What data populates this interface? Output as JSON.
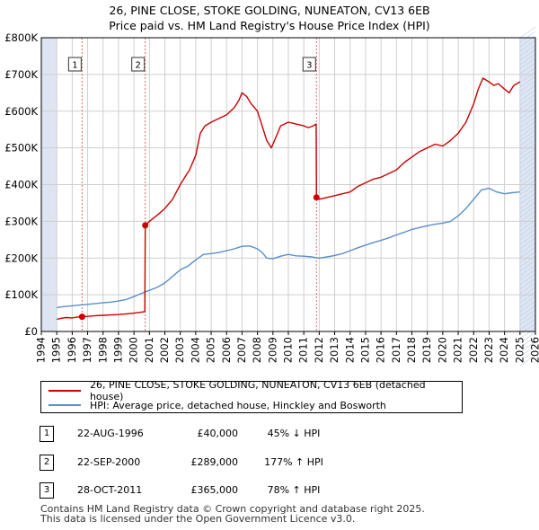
{
  "title_line1": "26, PINE CLOSE, STOKE GOLDING, NUNEATON, CV13 6EB",
  "title_line2": "Price paid vs. HM Land Registry's House Price Index (HPI)",
  "legend": {
    "property_label": "26, PINE CLOSE, STOKE GOLDING, NUNEATON, CV13 6EB (detached house)",
    "hpi_label": "HPI: Average price, detached house, Hinckley and Bosworth"
  },
  "transactions": [
    {
      "num": "1",
      "date": "22-AUG-1996",
      "price": "£40,000",
      "hpi": "45% ↓ HPI"
    },
    {
      "num": "2",
      "date": "22-SEP-2000",
      "price": "£289,000",
      "hpi": "177% ↑ HPI"
    },
    {
      "num": "3",
      "date": "28-OCT-2011",
      "price": "£365,000",
      "hpi": "78% ↑ HPI"
    }
  ],
  "footer": {
    "line1": "Contains HM Land Registry data © Crown copyright and database right 2025.",
    "line2": "This data is licensed under the Open Government Licence v3.0."
  },
  "colors": {
    "property": "#cc0000",
    "hpi": "#5b8ec9",
    "shade": "#dde5f3",
    "grid": "#cfcfcf",
    "marker_line": "#e06666"
  },
  "chart_data": {
    "type": "line",
    "title": "26, PINE CLOSE, STOKE GOLDING, NUNEATON, CV13 6EB — Price paid vs. HM Land Registry's House Price Index (HPI)",
    "xlabel": "",
    "ylabel": "",
    "xlim": [
      1994,
      2026
    ],
    "ylim": [
      0,
      800000
    ],
    "x_ticks": [
      1994,
      1995,
      1996,
      1997,
      1998,
      1999,
      2000,
      2001,
      2002,
      2003,
      2004,
      2005,
      2006,
      2007,
      2008,
      2009,
      2010,
      2011,
      2012,
      2013,
      2014,
      2015,
      2016,
      2017,
      2018,
      2019,
      2020,
      2021,
      2022,
      2023,
      2024,
      2025,
      2026
    ],
    "y_ticks": [
      {
        "value": 0,
        "label": "£0"
      },
      {
        "value": 100000,
        "label": "£100K"
      },
      {
        "value": 200000,
        "label": "£200K"
      },
      {
        "value": 300000,
        "label": "£300K"
      },
      {
        "value": 400000,
        "label": "£400K"
      },
      {
        "value": 500000,
        "label": "£500K"
      },
      {
        "value": 600000,
        "label": "£600K"
      },
      {
        "value": 700000,
        "label": "£700K"
      },
      {
        "value": 800000,
        "label": "£800K"
      }
    ],
    "grid": true,
    "shaded_ranges": [
      [
        1994,
        1995
      ],
      [
        2025,
        2026
      ]
    ],
    "sale_markers": [
      {
        "label": "1",
        "x": 1996.64,
        "y": 40000
      },
      {
        "label": "2",
        "x": 2000.73,
        "y": 289000
      },
      {
        "label": "3",
        "x": 2011.82,
        "y": 365000
      }
    ],
    "series": [
      {
        "name": "26, PINE CLOSE, STOKE GOLDING, NUNEATON, CV13 6EB (detached house)",
        "x": [
          1995.0,
          1995.3,
          1995.6,
          1996.0,
          1996.3,
          1996.64,
          1997.0,
          1997.5,
          1998.0,
          1998.5,
          1999.0,
          1999.5,
          2000.0,
          2000.4,
          2000.7,
          2000.73,
          2001.0,
          2001.3,
          2001.6,
          2002.0,
          2002.5,
          2003.0,
          2003.3,
          2003.6,
          2004.0,
          2004.3,
          2004.6,
          2005.0,
          2005.5,
          2006.0,
          2006.5,
          2006.8,
          2007.0,
          2007.3,
          2007.6,
          2008.0,
          2008.3,
          2008.6,
          2008.9,
          2009.2,
          2009.5,
          2010.0,
          2010.5,
          2011.0,
          2011.3,
          2011.6,
          2011.8,
          2011.82,
          2012.0,
          2012.5,
          2013.0,
          2013.5,
          2014.0,
          2014.5,
          2015.0,
          2015.5,
          2016.0,
          2016.5,
          2017.0,
          2017.5,
          2018.0,
          2018.5,
          2019.0,
          2019.5,
          2020.0,
          2020.5,
          2021.0,
          2021.5,
          2022.0,
          2022.3,
          2022.6,
          2023.0,
          2023.3,
          2023.6,
          2024.0,
          2024.3,
          2024.6,
          2025.0
        ],
        "values": [
          33000,
          36000,
          38000,
          37000,
          39000,
          40000,
          41000,
          43000,
          44000,
          45000,
          46000,
          48000,
          50000,
          52000,
          54000,
          289000,
          300000,
          310000,
          320000,
          335000,
          360000,
          400000,
          420000,
          440000,
          480000,
          540000,
          560000,
          570000,
          580000,
          590000,
          610000,
          630000,
          650000,
          640000,
          620000,
          600000,
          560000,
          520000,
          500000,
          530000,
          560000,
          570000,
          565000,
          560000,
          555000,
          560000,
          565000,
          365000,
          360000,
          365000,
          370000,
          375000,
          380000,
          395000,
          405000,
          415000,
          420000,
          430000,
          440000,
          460000,
          475000,
          490000,
          500000,
          510000,
          505000,
          520000,
          540000,
          570000,
          620000,
          660000,
          690000,
          680000,
          670000,
          675000,
          660000,
          650000,
          670000,
          680000
        ]
      },
      {
        "name": "HPI: Average price, detached house, Hinckley and Bosworth",
        "x": [
          1995.0,
          1995.5,
          1996.0,
          1996.5,
          1997.0,
          1997.5,
          1998.0,
          1998.5,
          1999.0,
          1999.5,
          2000.0,
          2000.5,
          2001.0,
          2001.5,
          2002.0,
          2002.5,
          2003.0,
          2003.5,
          2004.0,
          2004.5,
          2005.0,
          2005.5,
          2006.0,
          2006.5,
          2007.0,
          2007.5,
          2008.0,
          2008.3,
          2008.6,
          2009.0,
          2009.5,
          2010.0,
          2010.5,
          2011.0,
          2011.5,
          2012.0,
          2012.5,
          2013.0,
          2013.5,
          2014.0,
          2014.5,
          2015.0,
          2015.5,
          2016.0,
          2016.5,
          2017.0,
          2017.5,
          2018.0,
          2018.5,
          2019.0,
          2019.5,
          2020.0,
          2020.5,
          2021.0,
          2021.5,
          2022.0,
          2022.5,
          2023.0,
          2023.5,
          2024.0,
          2024.5,
          2025.0
        ],
        "values": [
          65000,
          68000,
          70000,
          72000,
          74000,
          76000,
          78000,
          80000,
          83000,
          87000,
          95000,
          104000,
          112000,
          120000,
          132000,
          150000,
          168000,
          178000,
          195000,
          210000,
          212000,
          215000,
          220000,
          225000,
          232000,
          233000,
          225000,
          215000,
          200000,
          198000,
          205000,
          210000,
          206000,
          205000,
          203000,
          200000,
          203000,
          207000,
          212000,
          220000,
          228000,
          235000,
          242000,
          248000,
          255000,
          263000,
          270000,
          278000,
          283000,
          288000,
          292000,
          295000,
          300000,
          315000,
          335000,
          360000,
          385000,
          390000,
          380000,
          375000,
          378000,
          380000
        ]
      }
    ]
  }
}
